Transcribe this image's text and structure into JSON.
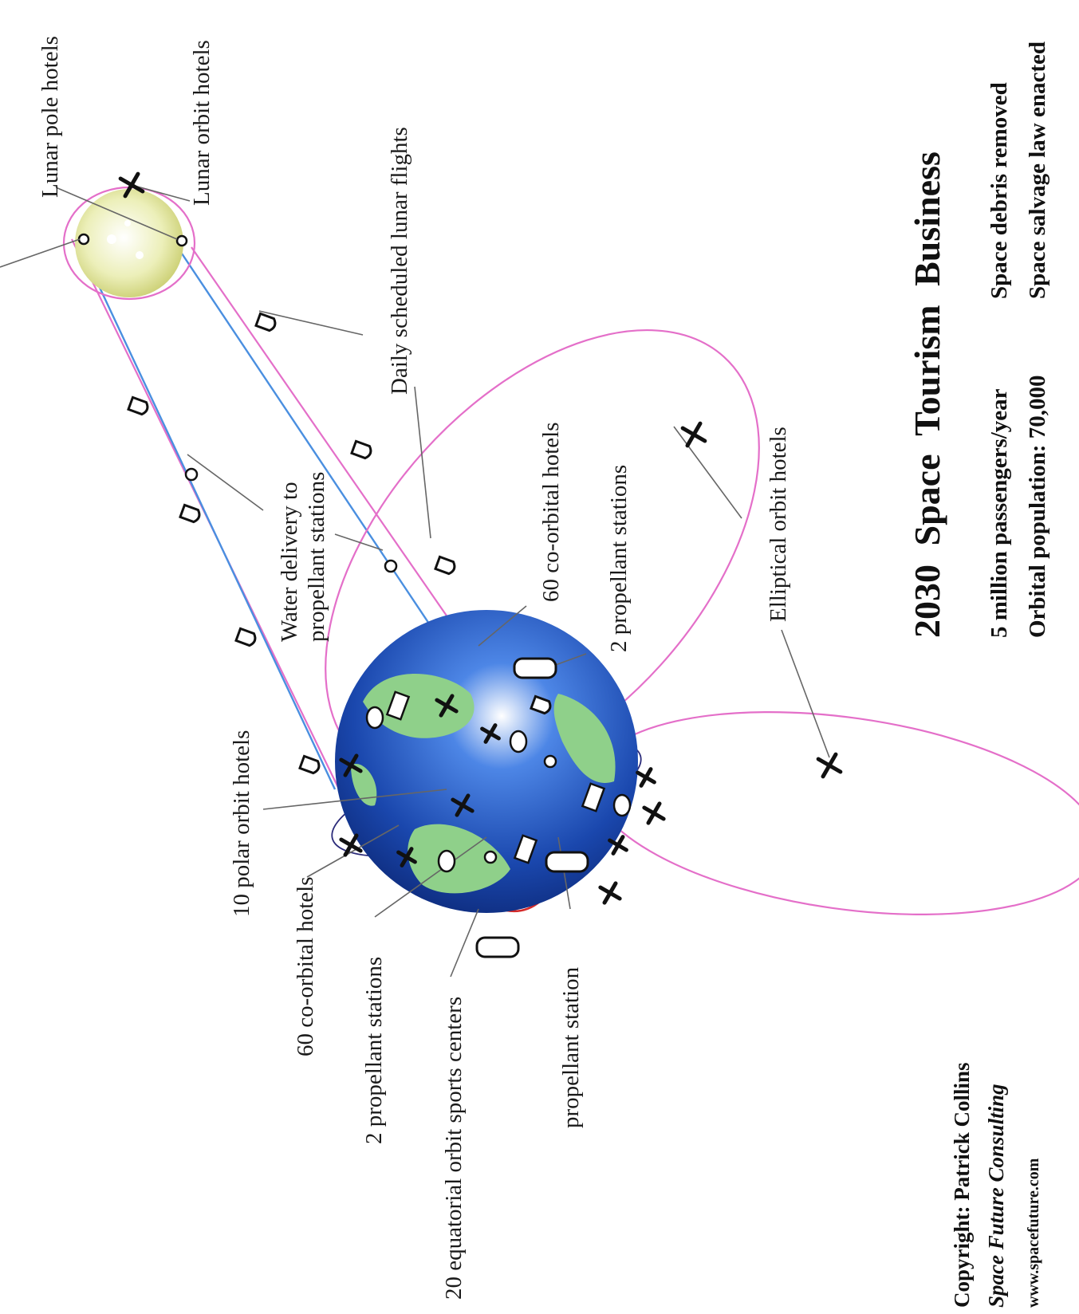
{
  "labels": {
    "lunar_pole_hotels": "Lunar pole hotels",
    "lunar_orbit_hotels": "Lunar orbit hotels",
    "daily_lunar_flights": "Daily scheduled lunar flights",
    "water_delivery_1": "Water delivery to",
    "water_delivery_2": "propellant stations",
    "co_orbital_top": "60 co-orbital hotels",
    "propellant_top": "2 propellant stations",
    "elliptical": "Elliptical orbit hotels",
    "polar": "10 polar orbit hotels",
    "co_orbital_left": "60 co-orbital hotels",
    "propellant_left": "2 propellant stations",
    "equatorial": "20 equatorial orbit sports centers",
    "propellant_station": "propellant station"
  },
  "title": "2030 Space Tourism Business",
  "stats": {
    "passengers": "5 million passengers/year",
    "population": "Orbital population: 70,000",
    "debris": "Space debris removed",
    "salvage": "Space salvage law enacted"
  },
  "copyright": {
    "line1": "Copyright: Patrick Collins",
    "line2": "Space Future Consulting",
    "line3": "www.spacefuture.com"
  },
  "colors": {
    "orbit_pink": "#e46fc9",
    "orbit_blue": "#4a8fe0",
    "orbit_red": "#d42a2a",
    "ocean": "#1d4fb5",
    "land": "#8fd08a",
    "moon": "#e9ecb0"
  },
  "icons": [
    "earth-icon",
    "moon-icon",
    "hotel-cross-icon",
    "shuttle-icon",
    "propellant-tank-icon",
    "station-ring-icon"
  ]
}
